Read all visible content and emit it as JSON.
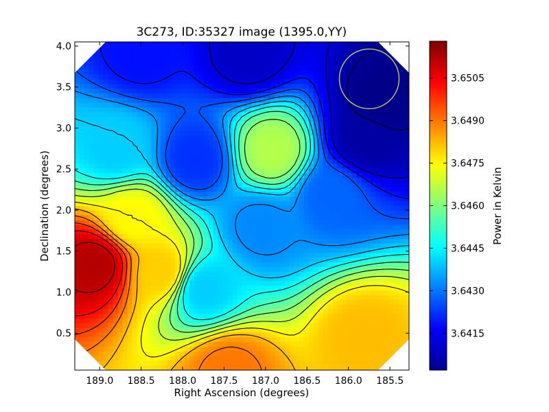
{
  "chart_data": {
    "type": "heatmap",
    "title": "3C273, ID:35327 image (1395.0,YY)",
    "xlabel": "Right Ascension (degrees)",
    "ylabel": "Declination (degrees)",
    "xlim": [
      189.3,
      185.27
    ],
    "ylim": [
      0.05,
      4.05
    ],
    "x_ticks": [
      189.0,
      188.5,
      188.0,
      187.5,
      187.0,
      186.5,
      186.0,
      185.5
    ],
    "x_tick_labels": [
      "189.0",
      "188.5",
      "188.0",
      "187.5",
      "187.0",
      "186.5",
      "186.0",
      "185.5"
    ],
    "y_ticks": [
      0.5,
      1.0,
      1.5,
      2.0,
      2.5,
      3.0,
      3.5,
      4.0
    ],
    "y_tick_labels": [
      "0.5",
      "1.0",
      "1.5",
      "2.0",
      "2.5",
      "3.0",
      "3.5",
      "4.0"
    ],
    "colorbar": {
      "label": "Power in Kelvin",
      "range": [
        3.6402,
        3.6518
      ],
      "ticks": [
        3.6415,
        3.643,
        3.6445,
        3.646,
        3.6475,
        3.649,
        3.6505
      ],
      "tick_labels": [
        "3.6415",
        "3.6430",
        "3.6445",
        "3.6460",
        "3.6475",
        "3.6490",
        "3.6505"
      ],
      "colormap": "jet"
    },
    "features": [
      {
        "ra": 189.05,
        "dec": 1.35,
        "value": 3.6512
      },
      {
        "ra": 187.45,
        "dec": 0.05,
        "value": 3.649
      },
      {
        "ra": 185.8,
        "dec": 0.45,
        "value": 3.6482
      },
      {
        "ra": 188.25,
        "dec": 1.25,
        "value": 3.648
      },
      {
        "ra": 187.75,
        "dec": 1.05,
        "value": 3.644
      },
      {
        "ra": 187.05,
        "dec": 1.8,
        "value": 3.6432
      },
      {
        "ra": 187.85,
        "dec": 2.62,
        "value": 3.6422
      },
      {
        "ra": 186.92,
        "dec": 2.72,
        "value": 3.6466
      },
      {
        "ra": 185.6,
        "dec": 3.35,
        "value": 3.6403
      },
      {
        "ra": 185.8,
        "dec": 2.85,
        "value": 3.6406
      },
      {
        "ra": 187.2,
        "dec": 3.9,
        "value": 3.641
      },
      {
        "ra": 186.2,
        "dec": 2.2,
        "value": 3.6428
      },
      {
        "ra": 188.8,
        "dec": 2.75,
        "value": 3.644
      },
      {
        "ra": 188.5,
        "dec": 3.9,
        "value": 3.6418
      },
      {
        "ra": 188.6,
        "dec": 1.9,
        "value": 3.6475
      }
    ],
    "beam_circle": {
      "ra": 185.75,
      "dec": 3.6,
      "radius_deg": 0.36,
      "color": "#c8c864"
    }
  }
}
